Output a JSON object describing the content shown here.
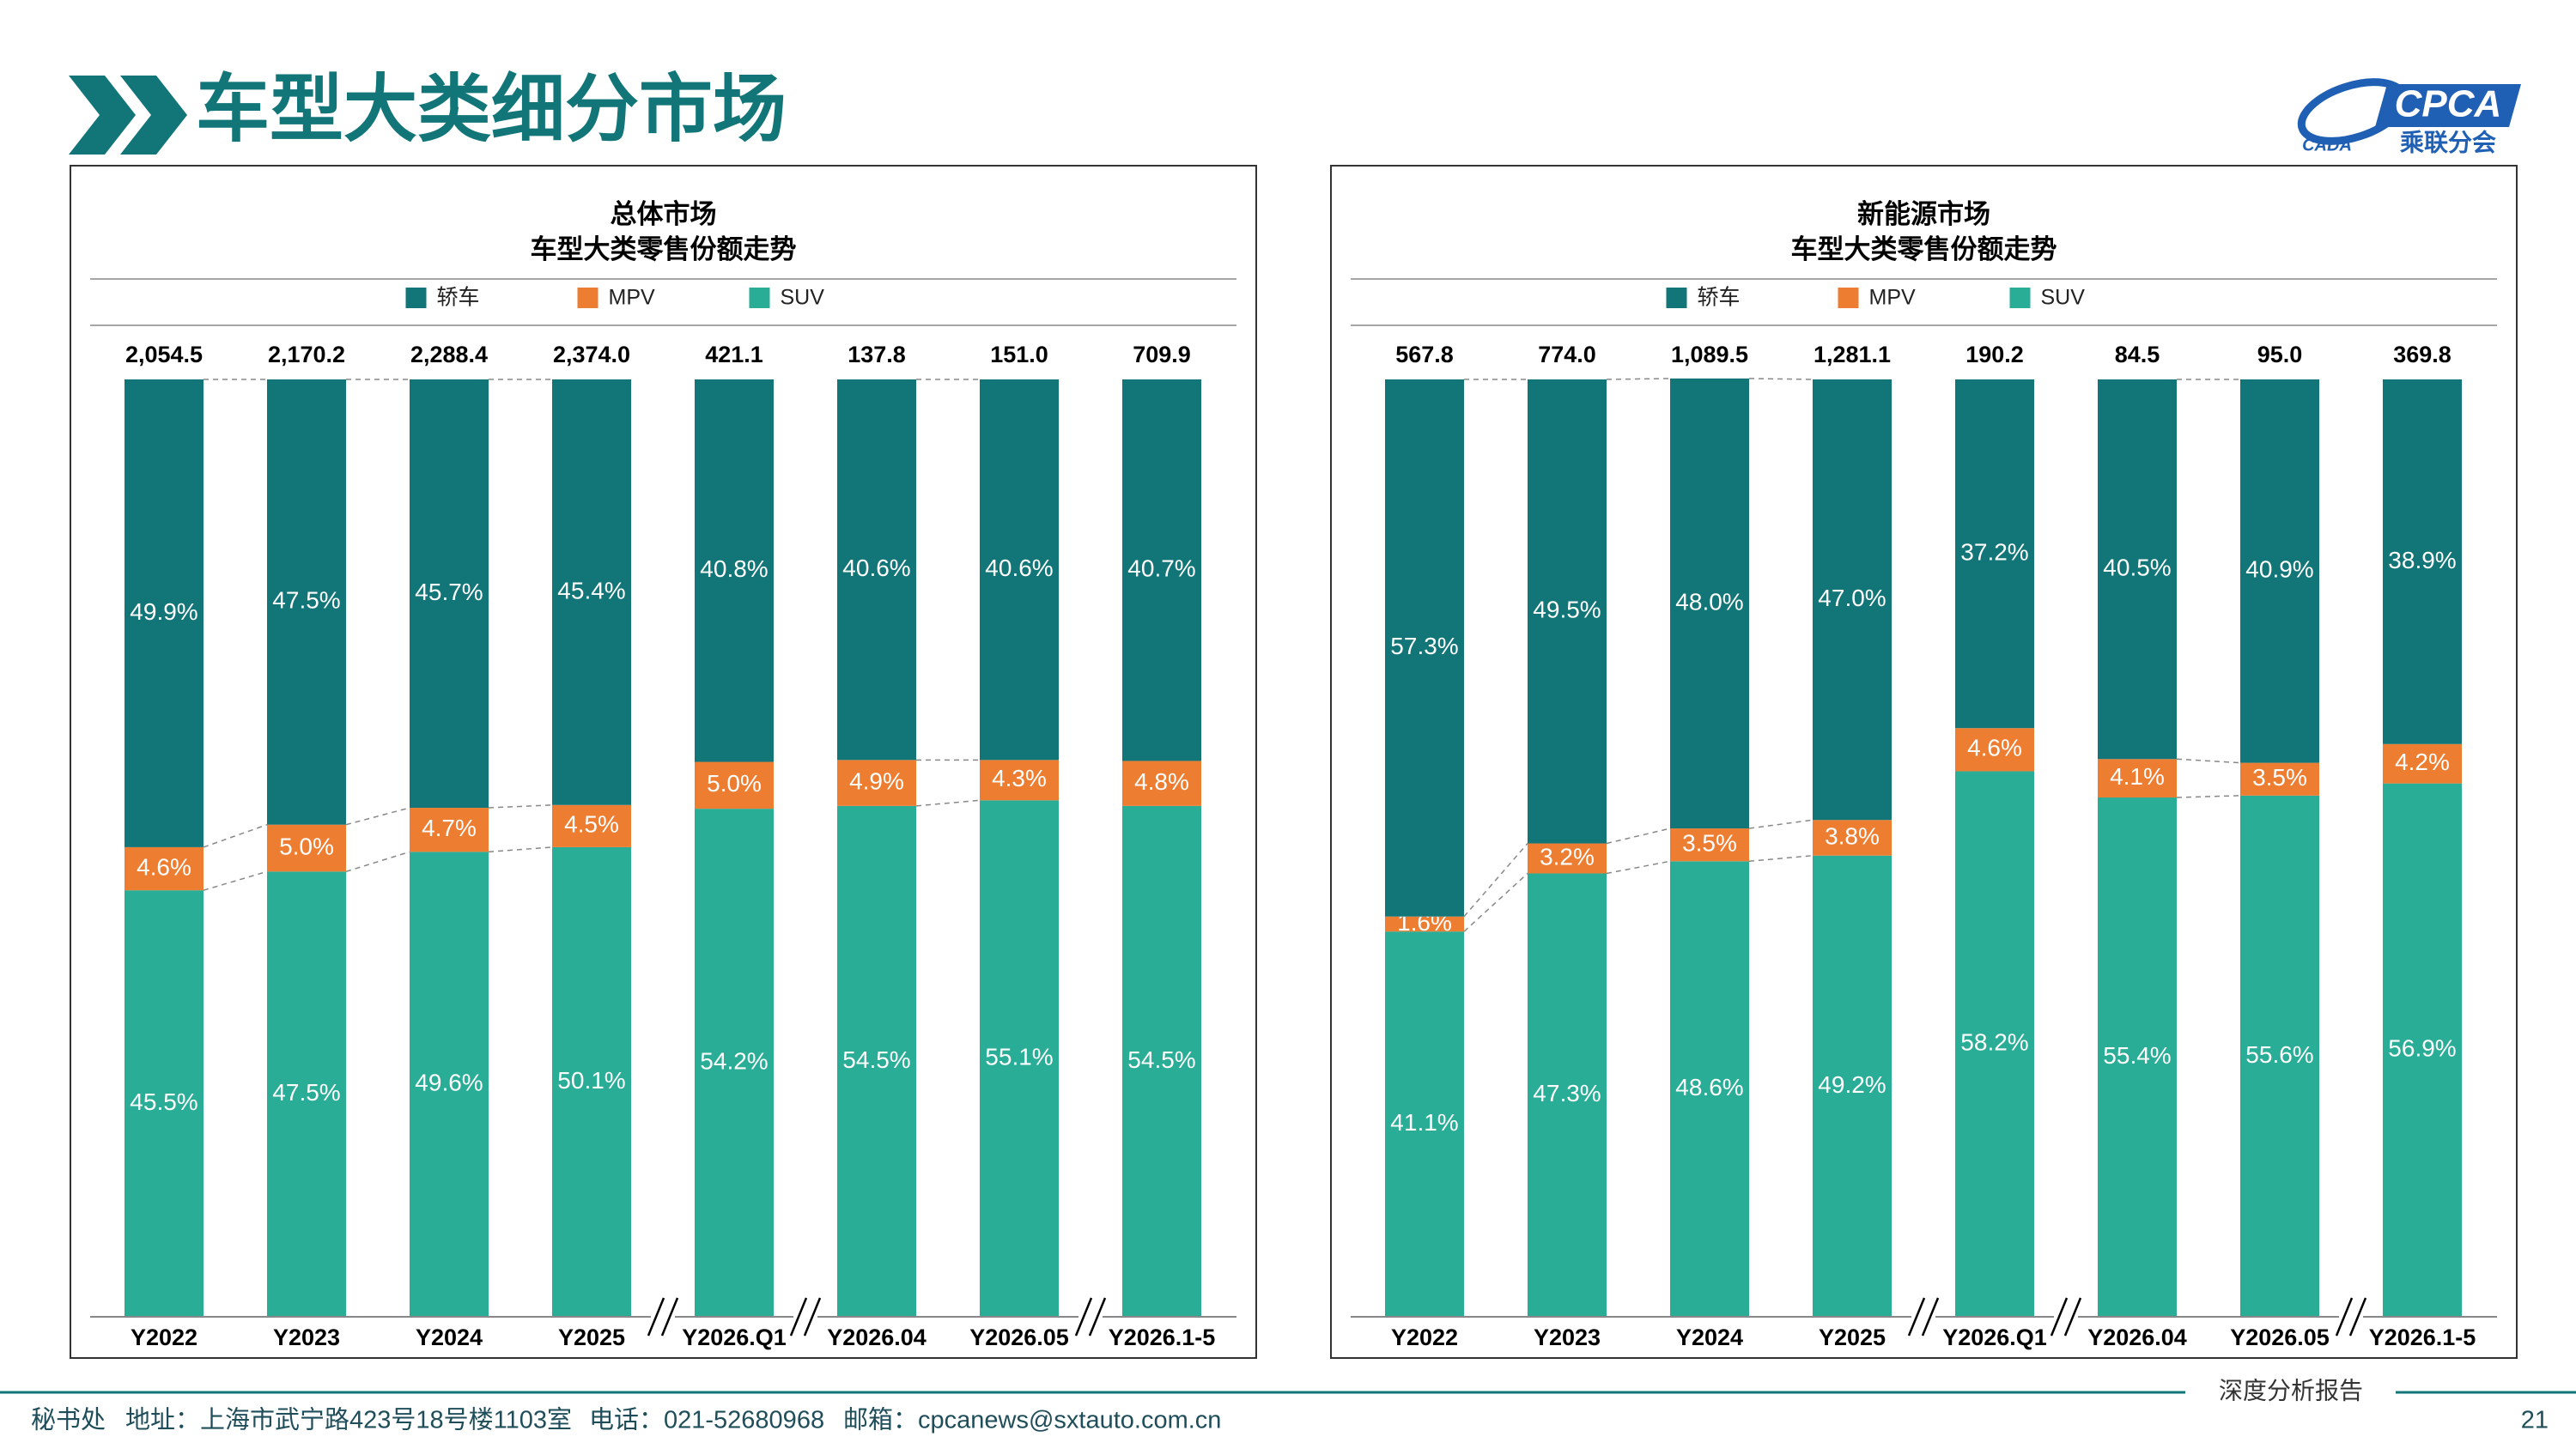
{
  "header": {
    "title": "车型大类细分市场",
    "logo": {
      "abbr": "CPCA",
      "name": "乘联分会",
      "sub": "CADA"
    }
  },
  "chart_data": [
    {
      "type": "bar",
      "stacked": true,
      "title": "总体市场",
      "subtitle": "车型大类零售份额走势",
      "categories": [
        "Y2022",
        "Y2023",
        "Y2024",
        "Y2025",
        "Y2026.Q1",
        "Y2026.04",
        "Y2026.05",
        "Y2026.1-5"
      ],
      "axis_breaks": [
        3,
        4,
        6
      ],
      "ylim": [
        0,
        100
      ],
      "totals": {
        "values": [
          2054.5,
          2170.2,
          2288.4,
          2374.0,
          421.1,
          137.8,
          151.0,
          709.9
        ],
        "value_labels": [
          "2,054.5",
          "2,170.2",
          "2,288.4",
          "2,374.0",
          "421.1",
          "137.8",
          "151.0",
          "709.9"
        ]
      },
      "series": [
        {
          "name": "轿车",
          "color": "#127679",
          "values": [
            49.9,
            47.5,
            45.7,
            45.4,
            40.8,
            40.6,
            40.6,
            40.7
          ],
          "value_labels": [
            "49.9%",
            "47.5%",
            "45.7%",
            "45.4%",
            "40.8%",
            "40.6%",
            "40.6%",
            "40.7%"
          ]
        },
        {
          "name": "MPV",
          "color": "#ed7d31",
          "values": [
            4.6,
            5.0,
            4.7,
            4.5,
            5.0,
            4.9,
            4.3,
            4.8
          ],
          "value_labels": [
            "4.6%",
            "5.0%",
            "4.7%",
            "4.5%",
            "5.0%",
            "4.9%",
            "4.3%",
            "4.8%"
          ]
        },
        {
          "name": "SUV",
          "color": "#29ad96",
          "values": [
            45.5,
            47.5,
            49.6,
            50.1,
            54.2,
            54.5,
            55.1,
            54.5
          ],
          "value_labels": [
            "45.5%",
            "47.5%",
            "49.6%",
            "50.1%",
            "54.2%",
            "54.5%",
            "55.1%",
            "54.5%"
          ]
        }
      ]
    },
    {
      "type": "bar",
      "stacked": true,
      "title": "新能源市场",
      "subtitle": "车型大类零售份额走势",
      "categories": [
        "Y2022",
        "Y2023",
        "Y2024",
        "Y2025",
        "Y2026.Q1",
        "Y2026.04",
        "Y2026.05",
        "Y2026.1-5"
      ],
      "axis_breaks": [
        3,
        4,
        6
      ],
      "ylim": [
        0,
        100
      ],
      "totals": {
        "values": [
          567.8,
          774.0,
          1089.5,
          1281.1,
          190.2,
          84.5,
          95.0,
          369.8
        ],
        "value_labels": [
          "567.8",
          "774.0",
          "1,089.5",
          "1,281.1",
          "190.2",
          "84.5",
          "95.0",
          "369.8"
        ]
      },
      "series": [
        {
          "name": "轿车",
          "color": "#127679",
          "values": [
            57.3,
            49.5,
            48.0,
            47.0,
            37.2,
            40.5,
            40.9,
            38.9
          ],
          "value_labels": [
            "57.3%",
            "49.5%",
            "48.0%",
            "47.0%",
            "37.2%",
            "40.5%",
            "40.9%",
            "38.9%"
          ]
        },
        {
          "name": "MPV",
          "color": "#ed7d31",
          "values": [
            1.6,
            3.2,
            3.5,
            3.8,
            4.6,
            4.1,
            3.5,
            4.2
          ],
          "value_labels": [
            "1.6%",
            "3.2%",
            "3.5%",
            "3.8%",
            "4.6%",
            "4.1%",
            "3.5%",
            "4.2%"
          ]
        },
        {
          "name": "SUV",
          "color": "#29ad96",
          "values": [
            41.1,
            47.3,
            48.6,
            49.2,
            58.2,
            55.4,
            55.6,
            56.9
          ],
          "value_labels": [
            "41.1%",
            "47.3%",
            "48.6%",
            "49.2%",
            "58.2%",
            "55.4%",
            "55.6%",
            "56.9%"
          ]
        }
      ]
    }
  ],
  "footer": {
    "office": "秘书处",
    "address": "地址：上海市武宁路423号18号楼1103室",
    "phone": "电话：021-52680968",
    "email": "邮箱：cpcanews@sxtauto.com.cn",
    "report": "深度分析报告",
    "page": 21
  }
}
